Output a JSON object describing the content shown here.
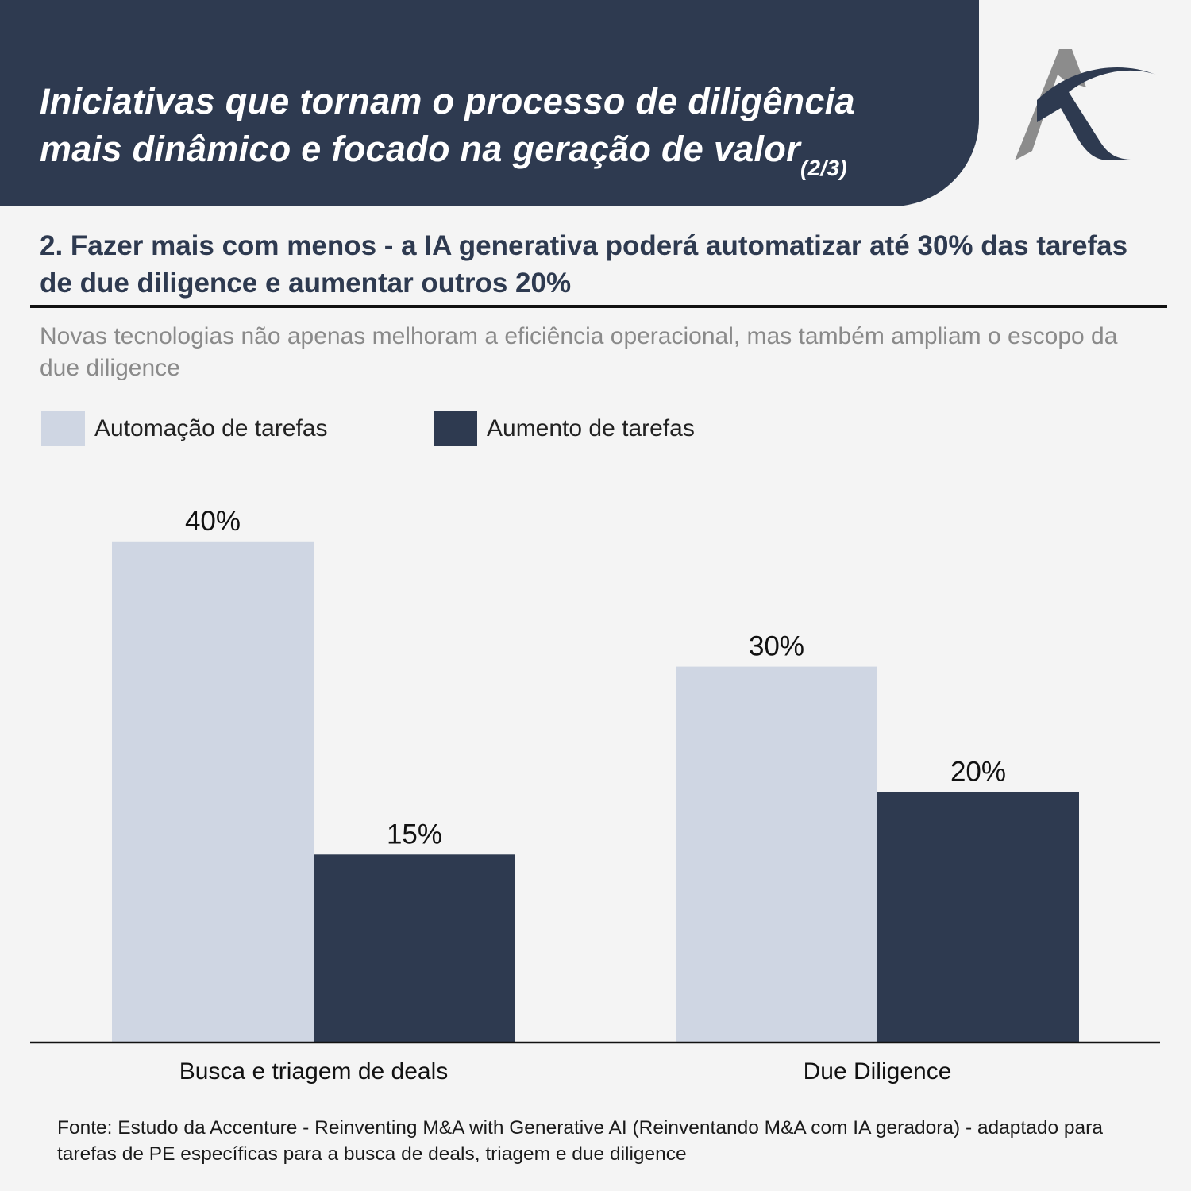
{
  "header": {
    "title_line1": "Iniciativas que tornam o processo de diligência",
    "title_line2": "mais dinâmico e focado na geração de valor",
    "title_suffix": "(2/3)"
  },
  "subtitle": "2. Fazer mais com menos - a IA generativa poderá automatizar até 30% das tarefas de due diligence e aumentar outros 20%",
  "description": "Novas tecnologias não apenas melhoram a eficiência operacional, mas também ampliam o escopo da due diligence",
  "source": "Fonte: Estudo da Accenture - Reinventing M&A with Generative AI (Reinventando M&A com IA geradora) - adaptado para tarefas de PE específicas para a busca de deals, triagem e due diligence",
  "colors": {
    "header_bg": "#2e3a50",
    "automation": "#cfd6e3",
    "augmentation": "#2e3a50",
    "logo_gray": "#8c8c8c"
  },
  "logo": {
    "icon": "a-logo-icon"
  },
  "chart_data": {
    "type": "bar",
    "categories": [
      "Busca e triagem de deals",
      "Due Diligence"
    ],
    "series": [
      {
        "name": "Automação de tarefas",
        "values": [
          40,
          30
        ],
        "labels": [
          "40%",
          "30%"
        ]
      },
      {
        "name": "Aumento de tarefas",
        "values": [
          15,
          20
        ],
        "labels": [
          "15%",
          "20%"
        ]
      }
    ],
    "ylim": [
      0,
      50
    ],
    "xlabel": "",
    "ylabel": "",
    "grid": false,
    "legend_position": "top-left"
  }
}
